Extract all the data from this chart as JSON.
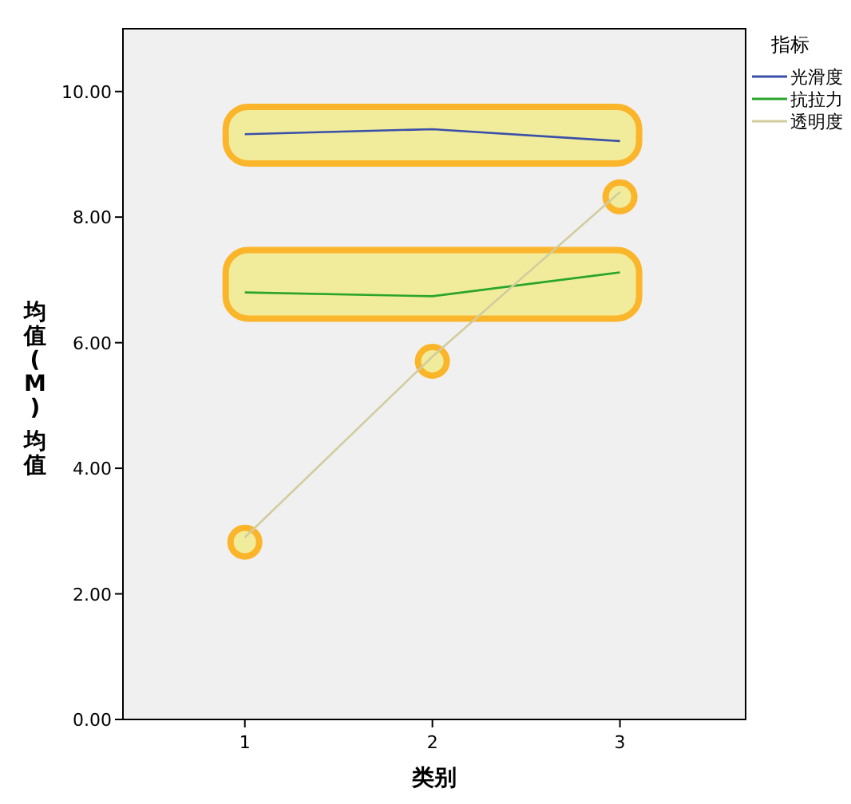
{
  "chart_data": {
    "type": "line",
    "xlabel": "类别",
    "ylabel": "均值(M) 均值",
    "legend_title": "指标",
    "categories": [
      "1",
      "2",
      "3"
    ],
    "series": [
      {
        "name": "光滑度",
        "color": "#3a4fa8",
        "values": [
          9.32,
          9.4,
          9.21
        ]
      },
      {
        "name": "抗拉力",
        "color": "#2aa52a",
        "values": [
          6.8,
          6.74,
          7.12
        ]
      },
      {
        "name": "透明度",
        "color": "#d2cc9e",
        "values": [
          2.9,
          5.78,
          8.4
        ]
      }
    ],
    "ylim": [
      0,
      11
    ],
    "yticks": [
      {
        "value": 0,
        "label": "0.00"
      },
      {
        "value": 2,
        "label": "2.00"
      },
      {
        "value": 4,
        "label": "4.00"
      },
      {
        "value": 6,
        "label": "6.00"
      },
      {
        "value": 8,
        "label": "8.00"
      },
      {
        "value": 10,
        "label": "10.00"
      }
    ],
    "grid": false,
    "legend": "top right",
    "marker": "none",
    "line_style": "solid"
  }
}
